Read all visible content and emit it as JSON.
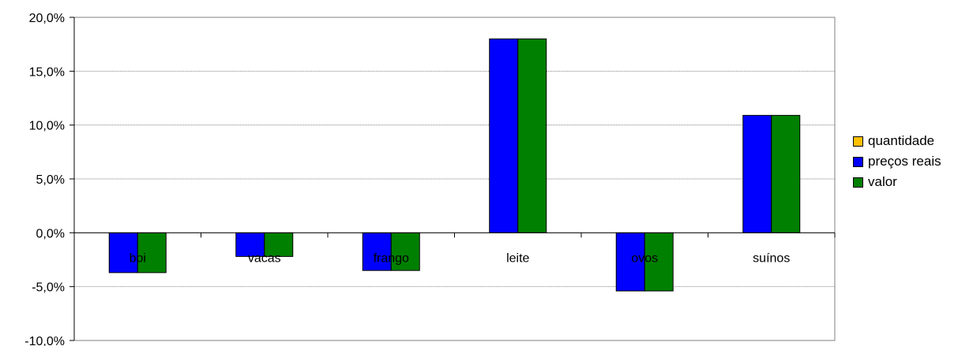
{
  "chart_data": {
    "type": "bar",
    "title": "",
    "xlabel": "",
    "ylabel": "",
    "categories": [
      "boi",
      "vacas",
      "frango",
      "leite",
      "ovos",
      "suínos"
    ],
    "series": [
      {
        "name": "quantidade",
        "color": "#FFC000",
        "values": [
          0,
          0,
          0,
          0,
          0,
          0
        ]
      },
      {
        "name": "preços reais",
        "color": "#0000FF",
        "values": [
          -3.7,
          -2.2,
          -3.5,
          18.0,
          -5.4,
          10.9
        ]
      },
      {
        "name": "valor",
        "color": "#008000",
        "values": [
          -3.7,
          -2.2,
          -3.5,
          18.0,
          -5.4,
          10.9
        ]
      }
    ],
    "ylim": [
      -10,
      20
    ],
    "yticks": [
      -10,
      -5,
      0,
      5,
      10,
      15,
      20
    ],
    "ytick_labels": [
      "-10,0%",
      "-5,0%",
      "0,0%",
      "5,0%",
      "10,0%",
      "15,0%",
      "20,0%"
    ],
    "grid": true,
    "legend_position": "right"
  }
}
